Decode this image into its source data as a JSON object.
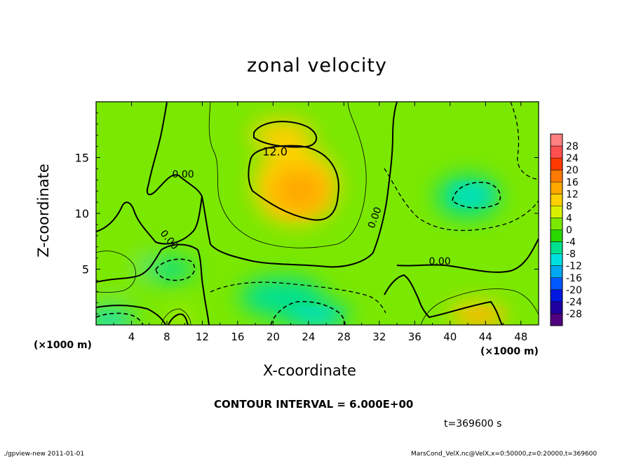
{
  "chart_data": {
    "type": "heatmap",
    "title": "zonal velocity",
    "xlabel": "X-coordinate",
    "ylabel": "Z-coordinate",
    "x_unit": "(×1000 m)",
    "xlim": [
      0,
      50
    ],
    "ylim": [
      0,
      20
    ],
    "x_ticks": [
      "4",
      "8",
      "12",
      "16",
      "20",
      "24",
      "28",
      "32",
      "36",
      "40",
      "44",
      "48"
    ],
    "y_ticks": [
      "5",
      "10",
      "15"
    ],
    "colorbar": {
      "labels": [
        "28",
        "24",
        "20",
        "16",
        "12",
        "8",
        "4",
        "0",
        "-4",
        "-8",
        "-12",
        "-16",
        "-20",
        "-24",
        "-28"
      ],
      "colors": [
        "#ff8080",
        "#ff5050",
        "#ff3a00",
        "#ff7a00",
        "#ffa800",
        "#ffd000",
        "#d8f000",
        "#7ae800",
        "#28d800",
        "#00e090",
        "#00e0e0",
        "#00a8f0",
        "#0058ff",
        "#0018e0",
        "#2000a0",
        "#500080"
      ]
    },
    "contour_labels": [
      "12.0",
      "0.00",
      "0.00",
      "0.00",
      "0.00"
    ],
    "contour_interval": "CONTOUR INTERVAL = 6.000E+00",
    "features": [
      {
        "x": 22.5,
        "z": 12.5,
        "value": 12.0
      },
      {
        "x": 21.0,
        "z": 17.0,
        "value": 12.0
      },
      {
        "x": 43.0,
        "z": 1.0,
        "value": 12.0
      },
      {
        "x": 42.0,
        "z": 11.5,
        "value": -6.0
      },
      {
        "x": 24.5,
        "z": 1.0,
        "value": -6.0
      },
      {
        "x": 21.0,
        "z": 2.5,
        "value": -4.0
      },
      {
        "x": 8.0,
        "z": 5.0,
        "value": -4.0
      },
      {
        "x": 1.5,
        "z": 0.5,
        "value": -10.0
      },
      {
        "x": 2.5,
        "z": 5.5,
        "value": 4.0
      },
      {
        "x": 9.5,
        "z": 0.5,
        "value": 8.0
      }
    ]
  },
  "time": "t=369600 s",
  "footer_left": "./gpview-new   2011-01-01",
  "footer_right": "MarsCond_VelX.nc@VelX,x=0:50000,z=0:20000,t=369600"
}
